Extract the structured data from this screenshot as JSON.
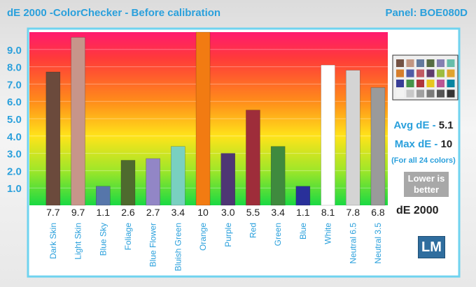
{
  "header": {
    "title": "dE 2000 -ColorChecker  - Before calibration",
    "panel": "Panel: BOE080D"
  },
  "summary": {
    "avg_label": "Avg dE - ",
    "avg_value": "5.1",
    "max_label": "Max dE - ",
    "max_value": "10",
    "note": "(For all 24 colors)",
    "lower_line1": "Lower is",
    "lower_line2": "better",
    "unit": "dE 2000",
    "logo": "LM"
  },
  "swatch_colors": [
    "#735244",
    "#c29682",
    "#627a9d",
    "#576c43",
    "#8580b1",
    "#67bdaa",
    "#d67e2c",
    "#505ba6",
    "#c15a63",
    "#5e3c6c",
    "#9dbc40",
    "#e0a32e",
    "#383d96",
    "#469449",
    "#af363c",
    "#e7c71f",
    "#bb5695",
    "#0885a1",
    "#f3f3f2",
    "#c8c8c8",
    "#a0a0a0",
    "#7a7a79",
    "#555555",
    "#343434"
  ],
  "chart_data": {
    "type": "bar",
    "xlabel": "",
    "ylabel": "",
    "ylim": [
      0,
      10
    ],
    "yticks": [
      "1.0",
      "2.0",
      "3.0",
      "4.0",
      "5.0",
      "6.0",
      "7.0",
      "8.0",
      "9.0"
    ],
    "grid": true,
    "categories": [
      "Dark Skin",
      "Light Skin",
      "Blue Sky",
      "Foliage",
      "Blue Flower",
      "Bluish Green",
      "Orange",
      "Purple",
      "Red",
      "Green",
      "Blue",
      "White",
      "Neutral 6.5",
      "Neutral 3.5"
    ],
    "values": [
      7.7,
      9.7,
      1.1,
      2.6,
      2.7,
      3.4,
      10,
      3.0,
      5.5,
      3.4,
      1.1,
      8.1,
      7.8,
      6.8
    ],
    "value_labels": [
      "7.7",
      "9.7",
      "1.1",
      "2.6",
      "2.7",
      "3.4",
      "10",
      "3.0",
      "5.5",
      "3.4",
      "1.1",
      "8.1",
      "7.8",
      "6.8"
    ],
    "bar_colors": [
      "#6b4a3c",
      "#c7958a",
      "#5676aa",
      "#4e6a2e",
      "#9286c6",
      "#79d0c0",
      "#f27b12",
      "#4e3674",
      "#9e2d3a",
      "#3f8a3e",
      "#29309a",
      "#ffffff",
      "#d4d4d4",
      "#9a9a9a"
    ]
  }
}
